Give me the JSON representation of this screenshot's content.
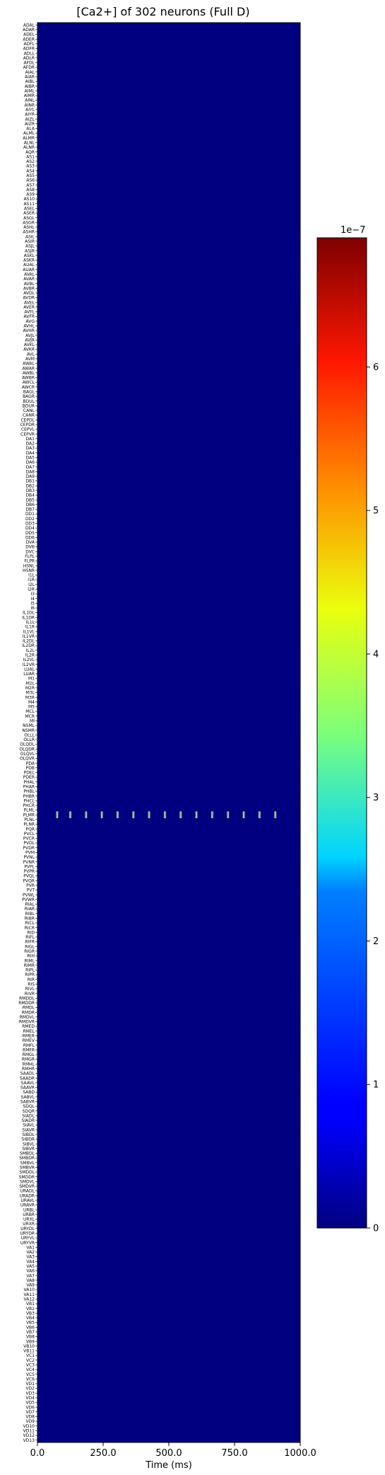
{
  "chart_data": [
    {
      "type": "heatmap",
      "title": "[Ca2+] of 302 neurons (Full D)",
      "xlabel": "Time (ms)",
      "ylabel": "",
      "xlim": [
        0,
        1000
      ],
      "x_ticks": [
        0.0,
        250.0,
        500.0,
        750.0,
        1000.0
      ],
      "x_tick_labels": [
        "0.0",
        "250.0",
        "500.0",
        "750.0",
        "1000.0"
      ],
      "y_tick_labels": [
        "ADAL",
        "ADAR",
        "ADEL",
        "ADER",
        "ADFL",
        "ADFR",
        "ADLL",
        "ADLR",
        "AFDL",
        "AFDR",
        "AIAL",
        "AIAR",
        "AIBL",
        "AIBR",
        "AIML",
        "AIMR",
        "AINL",
        "AINR",
        "AIYL",
        "AIYR",
        "AIZL",
        "AIZR",
        "ALA",
        "ALML",
        "ALMR",
        "ALNL",
        "ALNR",
        "AQR",
        "AS1",
        "AS2",
        "AS3",
        "AS4",
        "AS5",
        "AS6",
        "AS7",
        "AS8",
        "AS9",
        "AS10",
        "AS11",
        "ASEL",
        "ASER",
        "ASGL",
        "ASGR",
        "ASHL",
        "ASHR",
        "ASIL",
        "ASIR",
        "ASJL",
        "ASJR",
        "ASKL",
        "ASKR",
        "AUAL",
        "AUAR",
        "AVAL",
        "AVAR",
        "AVBL",
        "AVBR",
        "AVDL",
        "AVDR",
        "AVEL",
        "AVER",
        "AVFL",
        "AVFR",
        "AVG",
        "AVHL",
        "AVHR",
        "AVJL",
        "AVJR",
        "AVKL",
        "AVKR",
        "AVL",
        "AVM",
        "AWAL",
        "AWAR",
        "AWBL",
        "AWBR",
        "AWCL",
        "AWCR",
        "BAGL",
        "BAGR",
        "BDUL",
        "BDUR",
        "CANL",
        "CANR",
        "CEPDL",
        "CEPDR",
        "CEPVL",
        "CEPVR",
        "DA1",
        "DA2",
        "DA3",
        "DA4",
        "DA5",
        "DA6",
        "DA7",
        "DA8",
        "DA9",
        "DB1",
        "DB2",
        "DB3",
        "DB4",
        "DB5",
        "DB6",
        "DB7",
        "DD1",
        "DD2",
        "DD3",
        "DD4",
        "DD5",
        "DD6",
        "DVA",
        "DVB",
        "DVC",
        "FLPL",
        "FLPR",
        "HSNL",
        "HSNR",
        "I1L",
        "I1R",
        "I2L",
        "I2R",
        "I3",
        "I4",
        "I5",
        "I6",
        "IL1DL",
        "IL1DR",
        "IL1L",
        "IL1R",
        "IL1VL",
        "IL1VR",
        "IL2DL",
        "IL2DR",
        "IL2L",
        "IL2R",
        "IL2VL",
        "IL2VR",
        "LUAL",
        "LUAR",
        "M1",
        "M2L",
        "M2R",
        "M3L",
        "M3R",
        "M4",
        "M5",
        "MCL",
        "MCR",
        "MI",
        "NSML",
        "NSMR",
        "OLLL",
        "OLLR",
        "OLQDL",
        "OLQDR",
        "OLQVL",
        "OLQVR",
        "PDA",
        "PDB",
        "PDEL",
        "PDER",
        "PHAL",
        "PHAR",
        "PHBL",
        "PHBR",
        "PHCL",
        "PHCR",
        "PLML",
        "PLMR",
        "PLNL",
        "PLNR",
        "PQR",
        "PVCL",
        "PVCR",
        "PVDL",
        "PVDR",
        "PVM",
        "PVNL",
        "PVNR",
        "PVPL",
        "PVPR",
        "PVQL",
        "PVQR",
        "PVR",
        "PVT",
        "PVWL",
        "PVWR",
        "RIAL",
        "RIAR",
        "RIBL",
        "RIBR",
        "RICL",
        "RICR",
        "RID",
        "RIFL",
        "RIFR",
        "RIGL",
        "RIGR",
        "RIH",
        "RIML",
        "RIMR",
        "RIPL",
        "RIPR",
        "RIR",
        "RIS",
        "RIVL",
        "RIVR",
        "RMDDL",
        "RMDDR",
        "RMDL",
        "RMDR",
        "RMDVL",
        "RMDVR",
        "RMED",
        "RMEL",
        "RMER",
        "RMEV",
        "RMFL",
        "RMFR",
        "RMGL",
        "RMGR",
        "RMHL",
        "RMHR",
        "SAADL",
        "SAADR",
        "SAAVL",
        "SAAVR",
        "SABD",
        "SABVL",
        "SABVR",
        "SDQL",
        "SDQR",
        "SIADL",
        "SIADR",
        "SIAVL",
        "SIAVR",
        "SIBDL",
        "SIBDR",
        "SIBVL",
        "SIBVR",
        "SMBDL",
        "SMBDR",
        "SMBVL",
        "SMBVR",
        "SMDDL",
        "SMDDR",
        "SMDVL",
        "SMDVR",
        "URADL",
        "URADR",
        "URAVL",
        "URAVR",
        "URBL",
        "URBR",
        "URXL",
        "URXR",
        "URYDL",
        "URYDR",
        "URYVL",
        "URYVR",
        "VA1",
        "VA2",
        "VA3",
        "VA4",
        "VA5",
        "VA6",
        "VA7",
        "VA8",
        "VA9",
        "VA10",
        "VA11",
        "VA12",
        "VB1",
        "VB2",
        "VB3",
        "VB4",
        "VB5",
        "VB6",
        "VB7",
        "VB8",
        "VB9",
        "VB10",
        "VB11",
        "VC1",
        "VC2",
        "VC3",
        "VC4",
        "VC5",
        "VC6",
        "VD1",
        "VD2",
        "VD3",
        "VD4",
        "VD5",
        "VD6",
        "VD7",
        "VD8",
        "VD9",
        "VD10",
        "VD11",
        "VD12",
        "VD13"
      ],
      "background_value": 0,
      "active_neuron": "PLMR",
      "active_events": [
        [
          70,
          80
        ],
        [
          120,
          130
        ],
        [
          180,
          190
        ],
        [
          240,
          250
        ],
        [
          300,
          310
        ],
        [
          360,
          370
        ],
        [
          420,
          430
        ],
        [
          480,
          490
        ],
        [
          540,
          550
        ],
        [
          600,
          610
        ],
        [
          660,
          670
        ],
        [
          720,
          730
        ],
        [
          780,
          790
        ],
        [
          840,
          850
        ],
        [
          900,
          910
        ]
      ],
      "colormap": "jet",
      "colorbar": {
        "min": 0,
        "max": 6.9,
        "scale_label": "1e−7",
        "ticks": [
          0,
          1,
          2,
          3,
          4,
          5,
          6
        ],
        "tick_labels": [
          "0",
          "1",
          "2",
          "3",
          "4",
          "5",
          "6"
        ]
      }
    }
  ]
}
